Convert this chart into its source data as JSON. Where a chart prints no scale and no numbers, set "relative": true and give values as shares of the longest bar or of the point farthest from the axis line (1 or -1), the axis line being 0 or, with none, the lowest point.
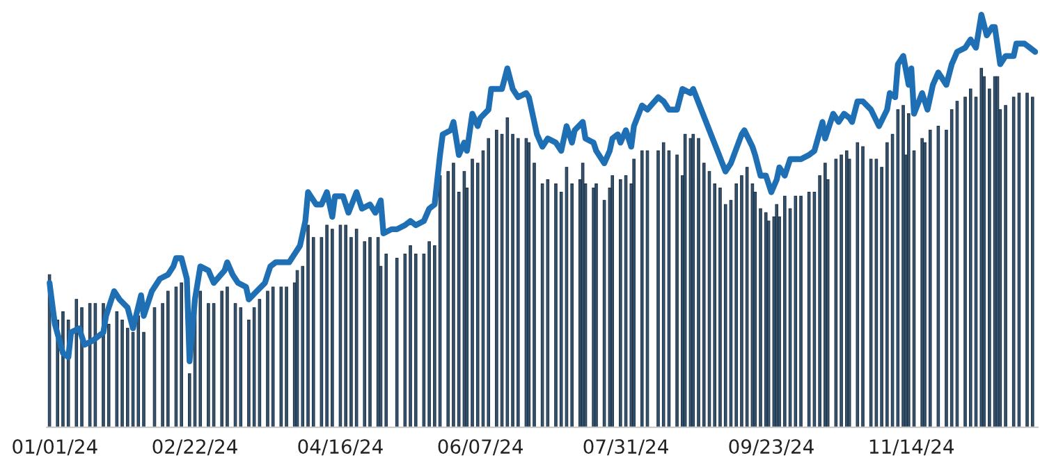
{
  "chart_data": {
    "type": "bar",
    "relative": true,
    "xlim": [
      "2023-12-29",
      "2024-12-31"
    ],
    "xticks": [
      {
        "value": "2024-01-01",
        "label": "01/01/24"
      },
      {
        "value": "2024-02-22",
        "label": "02/22/24"
      },
      {
        "value": "2024-04-16",
        "label": "04/16/24"
      },
      {
        "value": "2024-06-07",
        "label": "06/07/24"
      },
      {
        "value": "2024-07-31",
        "label": "07/31/24"
      },
      {
        "value": "2024-09-23",
        "label": "09/23/24"
      },
      {
        "value": "2024-11-14",
        "label": "11/14/24"
      }
    ],
    "series": [
      {
        "color": "#36546f",
        "x": [
          "2023-12-30",
          "2024-01-02",
          "2024-01-04",
          "2024-01-06",
          "2024-01-09",
          "2024-01-11",
          "2024-01-14",
          "2024-01-16",
          "2024-01-19",
          "2024-01-21",
          "2024-01-24",
          "2024-01-26",
          "2024-01-28",
          "2024-01-30",
          "2024-02-01",
          "2024-02-03",
          "2024-02-07",
          "2024-02-10",
          "2024-02-12",
          "2024-02-15",
          "2024-02-17",
          "2024-02-20",
          "2024-02-22",
          "2024-02-24",
          "2024-02-27",
          "2024-02-29",
          "2024-03-03",
          "2024-03-05",
          "2024-03-08",
          "2024-03-10",
          "2024-03-13",
          "2024-03-15",
          "2024-03-17",
          "2024-03-20",
          "2024-03-22",
          "2024-03-25",
          "2024-03-27",
          "2024-03-30",
          "2024-03-31",
          "2024-04-02",
          "2024-04-04",
          "2024-04-06",
          "2024-04-09",
          "2024-04-11",
          "2024-04-13",
          "2024-04-16",
          "2024-04-18",
          "2024-04-20",
          "2024-04-22",
          "2024-04-25",
          "2024-04-27",
          "2024-04-30",
          "2024-05-01",
          "2024-05-03",
          "2024-05-07",
          "2024-05-10",
          "2024-05-12",
          "2024-05-14",
          "2024-05-17",
          "2024-05-19",
          "2024-05-21",
          "2024-05-23",
          "2024-05-26",
          "2024-05-28",
          "2024-05-30",
          "2024-06-01",
          "2024-06-02",
          "2024-06-04",
          "2024-06-06",
          "2024-06-08",
          "2024-06-10",
          "2024-06-13",
          "2024-06-15",
          "2024-06-17",
          "2024-06-19",
          "2024-06-21",
          "2024-06-24",
          "2024-06-25",
          "2024-06-27",
          "2024-06-30",
          "2024-07-02",
          "2024-07-05",
          "2024-07-07",
          "2024-07-09",
          "2024-07-11",
          "2024-07-14",
          "2024-07-15",
          "2024-07-16",
          "2024-07-19",
          "2024-07-20",
          "2024-07-23",
          "2024-07-25",
          "2024-07-26",
          "2024-07-29",
          "2024-07-31",
          "2024-08-02",
          "2024-08-03",
          "2024-08-06",
          "2024-08-08",
          "2024-08-12",
          "2024-08-14",
          "2024-08-16",
          "2024-08-19",
          "2024-08-21",
          "2024-08-22",
          "2024-08-24",
          "2024-08-25",
          "2024-08-27",
          "2024-08-29",
          "2024-08-31",
          "2024-09-02",
          "2024-09-04",
          "2024-09-06",
          "2024-09-08",
          "2024-09-10",
          "2024-09-12",
          "2024-09-14",
          "2024-09-16",
          "2024-09-17",
          "2024-09-19",
          "2024-09-21",
          "2024-09-22",
          "2024-09-24",
          "2024-09-25",
          "2024-09-26",
          "2024-09-28",
          "2024-09-30",
          "2024-10-02",
          "2024-10-04",
          "2024-10-07",
          "2024-10-09",
          "2024-10-11",
          "2024-10-13",
          "2024-10-14",
          "2024-10-17",
          "2024-10-19",
          "2024-10-21",
          "2024-10-22",
          "2024-10-25",
          "2024-10-27",
          "2024-10-30",
          "2024-11-01",
          "2024-11-03",
          "2024-11-05",
          "2024-11-07",
          "2024-11-09",
          "2024-11-11",
          "2024-11-12",
          "2024-11-13",
          "2024-11-15",
          "2024-11-18",
          "2024-11-19",
          "2024-11-21",
          "2024-11-24",
          "2024-11-27",
          "2024-11-29",
          "2024-12-01",
          "2024-12-04",
          "2024-12-06",
          "2024-12-08",
          "2024-12-10",
          "2024-12-11",
          "2024-12-13",
          "2024-12-15",
          "2024-12-16",
          "2024-12-17",
          "2024-12-19",
          "2024-12-22",
          "2024-12-24",
          "2024-12-27",
          "2024-12-29"
        ],
        "values": [
          0.37,
          0.26,
          0.28,
          0.26,
          0.31,
          0.29,
          0.3,
          0.3,
          0.3,
          0.25,
          0.28,
          0.26,
          0.24,
          0.23,
          0.27,
          0.23,
          0.29,
          0.3,
          0.33,
          0.34,
          0.35,
          0.13,
          0.29,
          0.33,
          0.3,
          0.3,
          0.33,
          0.34,
          0.3,
          0.29,
          0.26,
          0.29,
          0.31,
          0.33,
          0.34,
          0.34,
          0.34,
          0.35,
          0.38,
          0.39,
          0.49,
          0.46,
          0.46,
          0.49,
          0.48,
          0.49,
          0.49,
          0.46,
          0.48,
          0.45,
          0.46,
          0.46,
          0.39,
          0.42,
          0.41,
          0.42,
          0.44,
          0.42,
          0.42,
          0.45,
          0.44,
          0.61,
          0.62,
          0.64,
          0.57,
          0.62,
          0.58,
          0.65,
          0.64,
          0.67,
          0.7,
          0.72,
          0.71,
          0.75,
          0.71,
          0.7,
          0.7,
          0.69,
          0.64,
          0.59,
          0.6,
          0.59,
          0.57,
          0.63,
          0.59,
          0.6,
          0.64,
          0.59,
          0.58,
          0.59,
          0.55,
          0.58,
          0.61,
          0.6,
          0.61,
          0.59,
          0.65,
          0.67,
          0.67,
          0.67,
          0.69,
          0.67,
          0.66,
          0.61,
          0.71,
          0.7,
          0.71,
          0.7,
          0.64,
          0.62,
          0.59,
          0.58,
          0.54,
          0.55,
          0.59,
          0.61,
          0.63,
          0.59,
          0.57,
          0.53,
          0.52,
          0.5,
          0.51,
          0.54,
          0.51,
          0.56,
          0.53,
          0.56,
          0.56,
          0.57,
          0.57,
          0.61,
          0.64,
          0.6,
          0.65,
          0.66,
          0.67,
          0.65,
          0.69,
          0.68,
          0.65,
          0.65,
          0.63,
          0.69,
          0.71,
          0.77,
          0.78,
          0.66,
          0.76,
          0.67,
          0.7,
          0.69,
          0.72,
          0.73,
          0.72,
          0.77,
          0.79,
          0.8,
          0.82,
          0.8,
          0.87,
          0.85,
          0.82,
          0.85,
          0.85,
          0.77,
          0.78,
          0.8,
          0.81,
          0.81,
          0.8
        ]
      },
      {
        "type": "line",
        "color": "#1f6fb5",
        "x": [
          "2023-12-30",
          "2024-01-01",
          "2024-01-04",
          "2024-01-06",
          "2024-01-07",
          "2024-01-10",
          "2024-01-12",
          "2024-01-15",
          "2024-01-19",
          "2024-01-20",
          "2024-01-23",
          "2024-01-25",
          "2024-01-28",
          "2024-01-30",
          "2024-02-02",
          "2024-02-03",
          "2024-02-06",
          "2024-02-09",
          "2024-02-12",
          "2024-02-14",
          "2024-02-15",
          "2024-02-17",
          "2024-02-19",
          "2024-02-20",
          "2024-02-22",
          "2024-02-24",
          "2024-02-27",
          "2024-02-29",
          "2024-03-04",
          "2024-03-05",
          "2024-03-07",
          "2024-03-09",
          "2024-03-12",
          "2024-03-13",
          "2024-03-16",
          "2024-03-19",
          "2024-03-21",
          "2024-03-23",
          "2024-03-26",
          "2024-03-28",
          "2024-03-30",
          "2024-04-01",
          "2024-04-03",
          "2024-04-04",
          "2024-04-07",
          "2024-04-09",
          "2024-04-11",
          "2024-04-13",
          "2024-04-14",
          "2024-04-17",
          "2024-04-19",
          "2024-04-22",
          "2024-04-24",
          "2024-04-27",
          "2024-04-29",
          "2024-05-01",
          "2024-05-02",
          "2024-05-05",
          "2024-05-07",
          "2024-05-10",
          "2024-05-12",
          "2024-05-14",
          "2024-05-17",
          "2024-05-19",
          "2024-05-21",
          "2024-05-23",
          "2024-05-24",
          "2024-05-27",
          "2024-05-28",
          "2024-05-30",
          "2024-06-01",
          "2024-06-02",
          "2024-06-04",
          "2024-06-06",
          "2024-06-07",
          "2024-06-10",
          "2024-06-11",
          "2024-06-13",
          "2024-06-15",
          "2024-06-17",
          "2024-06-19",
          "2024-06-21",
          "2024-06-24",
          "2024-06-25",
          "2024-06-28",
          "2024-06-30",
          "2024-07-02",
          "2024-07-05",
          "2024-07-07",
          "2024-07-09",
          "2024-07-11",
          "2024-07-12",
          "2024-07-15",
          "2024-07-16",
          "2024-07-19",
          "2024-07-20",
          "2024-07-23",
          "2024-07-25",
          "2024-07-26",
          "2024-07-28",
          "2024-07-29",
          "2024-07-31",
          "2024-08-02",
          "2024-08-03",
          "2024-08-06",
          "2024-08-08",
          "2024-08-12",
          "2024-08-14",
          "2024-08-16",
          "2024-08-19",
          "2024-08-21",
          "2024-08-24",
          "2024-08-25",
          "2024-08-28",
          "2024-08-31",
          "2024-09-03",
          "2024-09-06",
          "2024-09-08",
          "2024-09-12",
          "2024-09-13",
          "2024-09-16",
          "2024-09-17",
          "2024-09-19",
          "2024-09-21",
          "2024-09-23",
          "2024-09-25",
          "2024-09-26",
          "2024-09-28",
          "2024-09-30",
          "2024-10-02",
          "2024-10-04",
          "2024-10-07",
          "2024-10-09",
          "2024-10-12",
          "2024-10-13",
          "2024-10-16",
          "2024-10-18",
          "2024-10-20",
          "2024-10-22",
          "2024-10-23",
          "2024-10-25",
          "2024-10-27",
          "2024-10-30",
          "2024-11-02",
          "2024-11-05",
          "2024-11-06",
          "2024-11-08",
          "2024-11-09",
          "2024-11-11",
          "2024-11-13",
          "2024-11-14",
          "2024-11-15",
          "2024-11-18",
          "2024-11-20",
          "2024-11-22",
          "2024-11-24",
          "2024-11-27",
          "2024-11-29",
          "2024-12-01",
          "2024-12-04",
          "2024-12-06",
          "2024-12-08",
          "2024-12-10",
          "2024-12-12",
          "2024-12-14",
          "2024-12-15",
          "2024-12-17",
          "2024-12-19",
          "2024-12-22",
          "2024-12-23",
          "2024-12-26",
          "2024-12-28",
          "2024-12-30"
        ],
        "values": [
          0.35,
          0.25,
          0.18,
          0.17,
          0.23,
          0.24,
          0.2,
          0.21,
          0.23,
          0.27,
          0.33,
          0.31,
          0.29,
          0.24,
          0.32,
          0.27,
          0.33,
          0.36,
          0.37,
          0.39,
          0.41,
          0.41,
          0.36,
          0.16,
          0.31,
          0.39,
          0.38,
          0.35,
          0.38,
          0.4,
          0.37,
          0.35,
          0.34,
          0.31,
          0.33,
          0.35,
          0.39,
          0.4,
          0.4,
          0.4,
          0.42,
          0.44,
          0.5,
          0.57,
          0.54,
          0.54,
          0.57,
          0.51,
          0.56,
          0.56,
          0.52,
          0.57,
          0.53,
          0.54,
          0.52,
          0.55,
          0.47,
          0.48,
          0.48,
          0.49,
          0.5,
          0.49,
          0.5,
          0.53,
          0.54,
          0.66,
          0.71,
          0.72,
          0.74,
          0.66,
          0.69,
          0.67,
          0.76,
          0.73,
          0.75,
          0.77,
          0.82,
          0.82,
          0.82,
          0.87,
          0.82,
          0.8,
          0.81,
          0.8,
          0.71,
          0.68,
          0.7,
          0.69,
          0.67,
          0.73,
          0.69,
          0.72,
          0.74,
          0.7,
          0.69,
          0.67,
          0.64,
          0.67,
          0.7,
          0.71,
          0.69,
          0.72,
          0.68,
          0.73,
          0.78,
          0.77,
          0.8,
          0.79,
          0.77,
          0.77,
          0.82,
          0.81,
          0.82,
          0.77,
          0.72,
          0.67,
          0.62,
          0.64,
          0.71,
          0.72,
          0.68,
          0.66,
          0.61,
          0.61,
          0.57,
          0.6,
          0.63,
          0.61,
          0.65,
          0.65,
          0.65,
          0.66,
          0.67,
          0.74,
          0.7,
          0.76,
          0.74,
          0.76,
          0.75,
          0.74,
          0.79,
          0.79,
          0.77,
          0.73,
          0.77,
          0.81,
          0.8,
          0.88,
          0.9,
          0.83,
          0.87,
          0.76,
          0.81,
          0.77,
          0.83,
          0.86,
          0.83,
          0.88,
          0.91,
          0.92,
          0.94,
          0.92,
          1.0,
          0.95,
          0.97,
          0.97,
          0.88,
          0.9,
          0.9,
          0.93,
          0.93,
          0.92,
          0.91
        ]
      }
    ]
  }
}
